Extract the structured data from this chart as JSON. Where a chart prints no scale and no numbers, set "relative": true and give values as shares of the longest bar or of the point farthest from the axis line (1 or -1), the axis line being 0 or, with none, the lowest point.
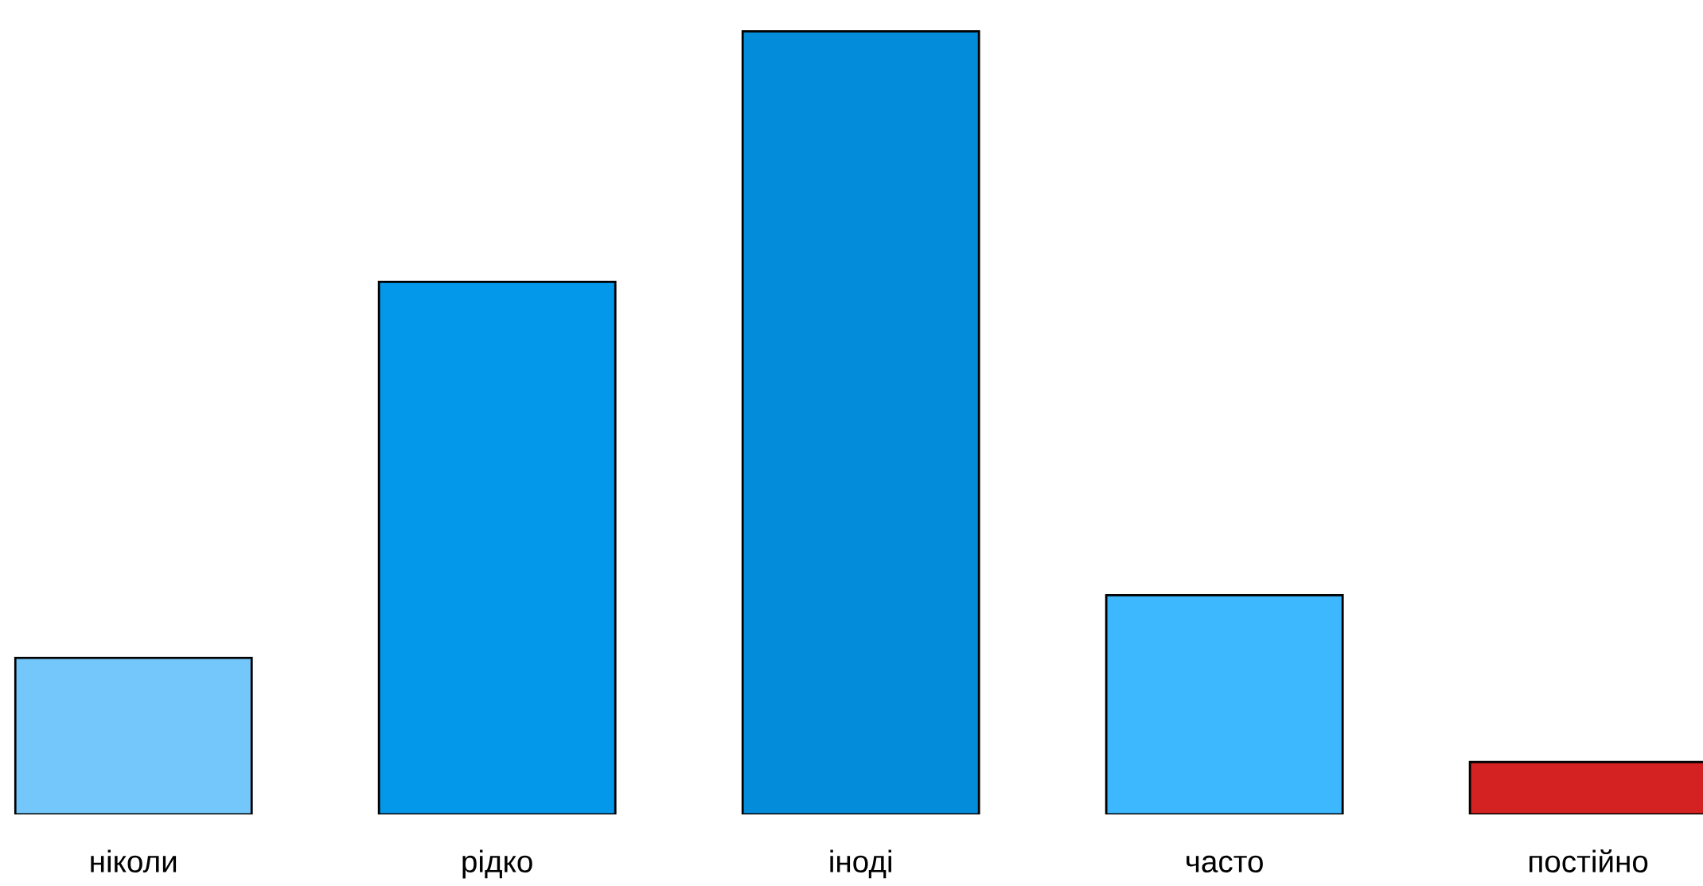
{
  "chart_data": {
    "type": "bar",
    "relative": true,
    "categories": [
      "ніколи",
      "рідко",
      "іноді",
      "часто",
      "постійно"
    ],
    "values": [
      0.2,
      0.68,
      1,
      0.28,
      0.067
    ],
    "colors": [
      "#73c7fa",
      "#0398ea",
      "#038cd9",
      "#3db8fe",
      "#d42121"
    ]
  }
}
